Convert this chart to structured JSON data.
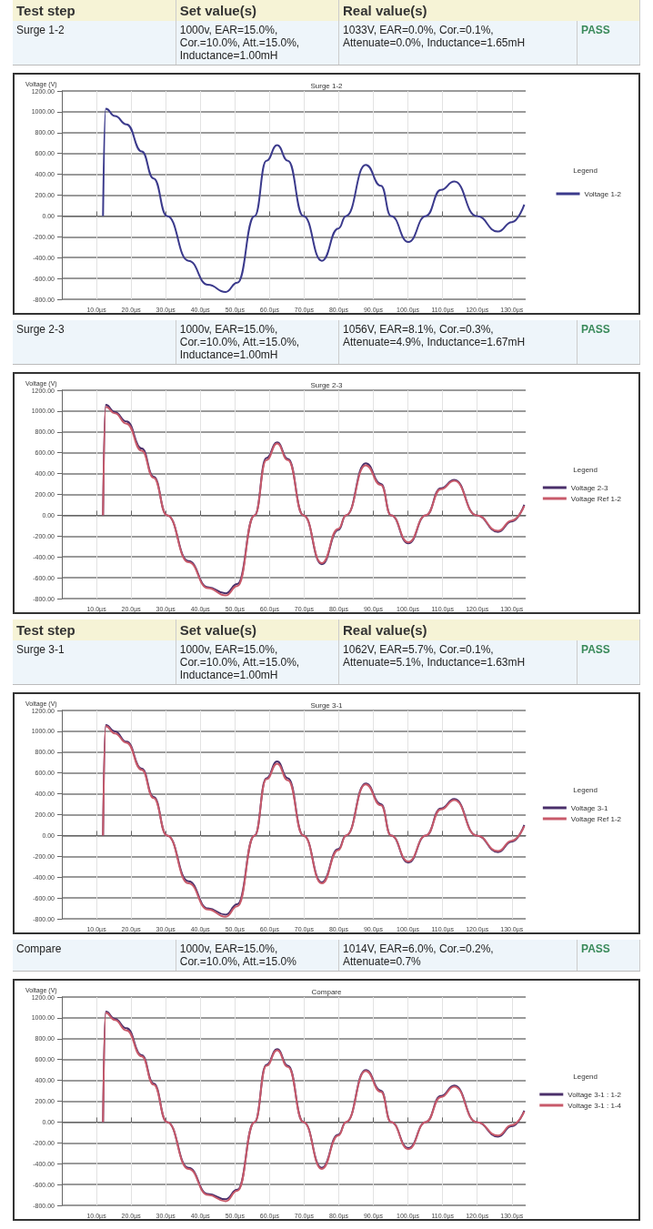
{
  "chart_data": [
    {
      "type": "line",
      "title": "Surge 1-2",
      "ylabel": "Voltage (V)",
      "legend_title": "Legend",
      "legend": "right",
      "grid": true,
      "marker": "none",
      "annotations": [
        "Test step",
        "Set value(s)",
        "Real value(s)",
        "Surge 1-2",
        "1000v, EAR=15.0%, Cor.=10.0%, Att.=15.0%, Inductance=1.00mH",
        "1033V, EAR=0.0%, Cor.=0.1%, Attenuate=0.0%, Inductance=1.65mH",
        "PASS"
      ],
      "xlim": [
        0,
        134
      ],
      "ylim": [
        -800,
        1200
      ],
      "xticks": [
        {
          "value": 10,
          "label": "10.0µs"
        },
        {
          "value": 20,
          "label": "20.0µs"
        },
        {
          "value": 30,
          "label": "30.0µs"
        },
        {
          "value": 40,
          "label": "40.0µs"
        },
        {
          "value": 50,
          "label": "50.0µs"
        },
        {
          "value": 60,
          "label": "60.0µs"
        },
        {
          "value": 70,
          "label": "70.0µs"
        },
        {
          "value": 80,
          "label": "80.0µs"
        },
        {
          "value": 90,
          "label": "90.0µs"
        },
        {
          "value": 100,
          "label": "100.0µs"
        },
        {
          "value": 110,
          "label": "110.0µs"
        },
        {
          "value": 120,
          "label": "120.0µs"
        },
        {
          "value": 130,
          "label": "130.0µs"
        }
      ],
      "yticks": [
        {
          "value": -800,
          "label": "-800.00"
        },
        {
          "value": -600,
          "label": "-600.00"
        },
        {
          "value": -400,
          "label": "-400.00"
        },
        {
          "value": -200,
          "label": "-200.00"
        },
        {
          "value": 0,
          "label": "0.00"
        },
        {
          "value": 200,
          "label": "200.00"
        },
        {
          "value": 400,
          "label": "400.00"
        },
        {
          "value": 600,
          "label": "600.00"
        },
        {
          "value": 800,
          "label": "800.00"
        },
        {
          "value": 1000,
          "label": "1000.00"
        },
        {
          "value": 1200,
          "label": "1200.00"
        }
      ],
      "x": [
        11.9,
        12.7,
        15.3,
        18.7,
        23.1,
        26.5,
        30.4,
        36.6,
        42.2,
        47.3,
        50.7,
        55.7,
        59.1,
        62.2,
        65.3,
        69.8,
        75.1,
        79.9,
        82.1,
        87.8,
        92.2,
        95.1,
        100.1,
        105.2,
        109.5,
        113.4,
        119.8,
        126,
        130,
        133.6
      ],
      "series": [
        {
          "name": "Voltage 1-2",
          "color": "#3b3a8c",
          "values": [
            0,
            1030,
            960,
            880,
            620,
            360,
            0,
            -430,
            -660,
            -730,
            -640,
            0,
            530,
            680,
            530,
            0,
            -430,
            -120,
            0,
            490,
            290,
            0,
            -250,
            0,
            250,
            330,
            0,
            -150,
            -60,
            110
          ]
        }
      ]
    },
    {
      "type": "line",
      "title": "Surge 2-3",
      "ylabel": "Voltage (V)",
      "legend_title": "Legend",
      "legend": "right",
      "grid": true,
      "marker": "none",
      "annotations": [
        "Surge 2-3",
        "1000v, EAR=15.0%, Cor.=10.0%, Att.=15.0%, Inductance=1.00mH",
        "1056V, EAR=8.1%, Cor.=0.3%, Attenuate=4.9%, Inductance=1.67mH",
        "PASS"
      ],
      "xlim": [
        0,
        134
      ],
      "ylim": [
        -800,
        1200
      ],
      "xticks": [
        {
          "value": 10,
          "label": "10.0µs"
        },
        {
          "value": 20,
          "label": "20.0µs"
        },
        {
          "value": 30,
          "label": "30.0µs"
        },
        {
          "value": 40,
          "label": "40.0µs"
        },
        {
          "value": 50,
          "label": "50.0µs"
        },
        {
          "value": 60,
          "label": "60.0µs"
        },
        {
          "value": 70,
          "label": "70.0µs"
        },
        {
          "value": 80,
          "label": "80.0µs"
        },
        {
          "value": 90,
          "label": "90.0µs"
        },
        {
          "value": 100,
          "label": "100.0µs"
        },
        {
          "value": 110,
          "label": "110.0µs"
        },
        {
          "value": 120,
          "label": "120.0µs"
        },
        {
          "value": 130,
          "label": "130.0µs"
        }
      ],
      "yticks": [
        {
          "value": -800,
          "label": "-800.00"
        },
        {
          "value": -600,
          "label": "-600.00"
        },
        {
          "value": -400,
          "label": "-400.00"
        },
        {
          "value": -200,
          "label": "-200.00"
        },
        {
          "value": 0,
          "label": "0.00"
        },
        {
          "value": 200,
          "label": "200.00"
        },
        {
          "value": 400,
          "label": "400.00"
        },
        {
          "value": 600,
          "label": "600.00"
        },
        {
          "value": 800,
          "label": "800.00"
        },
        {
          "value": 1000,
          "label": "1000.00"
        },
        {
          "value": 1200,
          "label": "1200.00"
        }
      ],
      "x": [
        11.9,
        12.7,
        15.3,
        18.7,
        23.1,
        26.5,
        30.4,
        36.6,
        42.2,
        47.3,
        50.7,
        55.7,
        59.1,
        62.2,
        65.3,
        69.8,
        75.1,
        79.9,
        82.1,
        87.8,
        92.2,
        95.1,
        100.1,
        105.2,
        109.5,
        113.4,
        119.8,
        126,
        130,
        133.6
      ],
      "series": [
        {
          "name": "Voltage 2-3",
          "color": "#4a2f6a",
          "values": [
            0,
            1060,
            990,
            900,
            640,
            370,
            0,
            -440,
            -690,
            -750,
            -660,
            0,
            550,
            700,
            540,
            0,
            -470,
            -140,
            0,
            500,
            300,
            0,
            -270,
            0,
            260,
            340,
            0,
            -160,
            -60,
            100
          ]
        },
        {
          "name": "Voltage Ref 1-2",
          "color": "#c85a6a",
          "values": [
            0,
            1040,
            980,
            880,
            620,
            360,
            0,
            -450,
            -700,
            -770,
            -680,
            0,
            530,
            690,
            530,
            0,
            -460,
            -130,
            0,
            480,
            290,
            0,
            -260,
            0,
            250,
            330,
            0,
            -150,
            -50,
            90
          ]
        }
      ]
    },
    {
      "type": "line",
      "title": "Surge 3-1",
      "ylabel": "Voltage (V)",
      "legend_title": "Legend",
      "legend": "right",
      "grid": true,
      "marker": "none",
      "annotations": [
        "Test step",
        "Set value(s)",
        "Real value(s)",
        "Surge 3-1",
        "1000v, EAR=15.0%, Cor.=10.0%, Att.=15.0%, Inductance=1.00mH",
        "1062V, EAR=5.7%, Cor.=0.1%, Attenuate=5.1%, Inductance=1.63mH",
        "PASS"
      ],
      "xlim": [
        0,
        134
      ],
      "ylim": [
        -800,
        1200
      ],
      "xticks": [
        {
          "value": 10,
          "label": "10.0µs"
        },
        {
          "value": 20,
          "label": "20.0µs"
        },
        {
          "value": 30,
          "label": "30.0µs"
        },
        {
          "value": 40,
          "label": "40.0µs"
        },
        {
          "value": 50,
          "label": "50.0µs"
        },
        {
          "value": 60,
          "label": "60.0µs"
        },
        {
          "value": 70,
          "label": "70.0µs"
        },
        {
          "value": 80,
          "label": "80.0µs"
        },
        {
          "value": 90,
          "label": "90.0µs"
        },
        {
          "value": 100,
          "label": "100.0µs"
        },
        {
          "value": 110,
          "label": "110.0µs"
        },
        {
          "value": 120,
          "label": "120.0µs"
        },
        {
          "value": 130,
          "label": "130.0µs"
        }
      ],
      "yticks": [
        {
          "value": -800,
          "label": "-800.00"
        },
        {
          "value": -600,
          "label": "-600.00"
        },
        {
          "value": -400,
          "label": "-400.00"
        },
        {
          "value": -200,
          "label": "-200.00"
        },
        {
          "value": 0,
          "label": "0.00"
        },
        {
          "value": 200,
          "label": "200.00"
        },
        {
          "value": 400,
          "label": "400.00"
        },
        {
          "value": 600,
          "label": "600.00"
        },
        {
          "value": 800,
          "label": "800.00"
        },
        {
          "value": 1000,
          "label": "1000.00"
        },
        {
          "value": 1200,
          "label": "1200.00"
        }
      ],
      "x": [
        11.9,
        12.7,
        15.3,
        18.7,
        23.1,
        26.5,
        30.4,
        36.6,
        42.2,
        47.3,
        50.7,
        55.7,
        59.1,
        62.2,
        65.3,
        69.8,
        75.1,
        79.9,
        82.1,
        87.8,
        92.2,
        95.1,
        100.1,
        105.2,
        109.5,
        113.4,
        119.8,
        126,
        130,
        133.6
      ],
      "series": [
        {
          "name": "Voltage 3-1",
          "color": "#4a2f6a",
          "values": [
            0,
            1060,
            1000,
            900,
            640,
            370,
            0,
            -440,
            -700,
            -760,
            -660,
            0,
            550,
            710,
            550,
            0,
            -450,
            -130,
            0,
            500,
            300,
            0,
            -260,
            0,
            260,
            350,
            0,
            -160,
            -60,
            100
          ]
        },
        {
          "name": "Voltage Ref 1-2",
          "color": "#c85a6a",
          "values": [
            0,
            1050,
            980,
            890,
            630,
            360,
            0,
            -460,
            -710,
            -780,
            -680,
            0,
            540,
            690,
            530,
            0,
            -460,
            -140,
            0,
            490,
            290,
            0,
            -250,
            0,
            250,
            340,
            0,
            -150,
            -50,
            90
          ]
        }
      ]
    },
    {
      "type": "line",
      "title": "Compare",
      "ylabel": "Voltage (V)",
      "legend_title": "Legend",
      "legend": "right",
      "grid": true,
      "marker": "none",
      "annotations": [
        "Compare",
        "1000v, EAR=15.0%, Cor.=10.0%, Att.=15.0%",
        "1014V, EAR=6.0%, Cor.=0.2%, Attenuate=0.7%",
        "PASS"
      ],
      "xlim": [
        0,
        134
      ],
      "ylim": [
        -800,
        1200
      ],
      "xticks": [
        {
          "value": 10,
          "label": "10.0µs"
        },
        {
          "value": 20,
          "label": "20.0µs"
        },
        {
          "value": 30,
          "label": "30.0µs"
        },
        {
          "value": 40,
          "label": "40.0µs"
        },
        {
          "value": 50,
          "label": "50.0µs"
        },
        {
          "value": 60,
          "label": "60.0µs"
        },
        {
          "value": 70,
          "label": "70.0µs"
        },
        {
          "value": 80,
          "label": "80.0µs"
        },
        {
          "value": 90,
          "label": "90.0µs"
        },
        {
          "value": 100,
          "label": "100.0µs"
        },
        {
          "value": 110,
          "label": "110.0µs"
        },
        {
          "value": 120,
          "label": "120.0µs"
        },
        {
          "value": 130,
          "label": "130.0µs"
        }
      ],
      "yticks": [
        {
          "value": -800,
          "label": "-800.00"
        },
        {
          "value": -600,
          "label": "-600.00"
        },
        {
          "value": -400,
          "label": "-400.00"
        },
        {
          "value": -200,
          "label": "-200.00"
        },
        {
          "value": 0,
          "label": "0.00"
        },
        {
          "value": 200,
          "label": "200.00"
        },
        {
          "value": 400,
          "label": "400.00"
        },
        {
          "value": 600,
          "label": "600.00"
        },
        {
          "value": 800,
          "label": "800.00"
        },
        {
          "value": 1000,
          "label": "1000.00"
        },
        {
          "value": 1200,
          "label": "1200.00"
        }
      ],
      "x": [
        11.9,
        12.7,
        15.3,
        18.7,
        23.1,
        26.5,
        30.4,
        36.6,
        42.2,
        47.3,
        50.7,
        55.7,
        59.1,
        62.2,
        65.3,
        69.8,
        75.1,
        79.9,
        82.1,
        87.8,
        92.2,
        95.1,
        100.1,
        105.2,
        109.5,
        113.4,
        119.8,
        126,
        130,
        133.6
      ],
      "series": [
        {
          "name": "Voltage 3-1 : 1-2",
          "color": "#4a2f6a",
          "values": [
            0,
            1060,
            990,
            900,
            640,
            370,
            0,
            -440,
            -690,
            -740,
            -650,
            0,
            550,
            700,
            540,
            0,
            -440,
            -120,
            0,
            500,
            300,
            0,
            -250,
            0,
            250,
            350,
            0,
            -140,
            -40,
            110
          ]
        },
        {
          "name": "Voltage 3-1 : 1-4",
          "color": "#c85a6a",
          "values": [
            0,
            1050,
            980,
            880,
            630,
            360,
            0,
            -450,
            -700,
            -760,
            -660,
            0,
            540,
            690,
            530,
            0,
            -450,
            -130,
            0,
            490,
            290,
            0,
            -260,
            0,
            240,
            340,
            0,
            -130,
            -30,
            100
          ]
        }
      ]
    }
  ]
}
